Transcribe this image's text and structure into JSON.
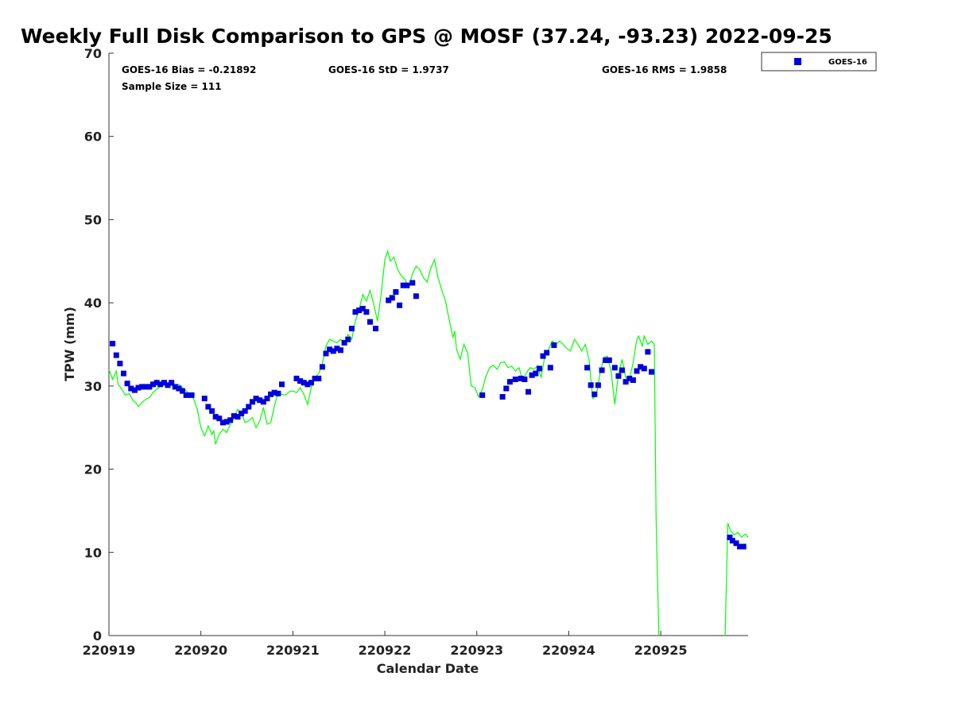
{
  "chart_data": {
    "type": "scatter",
    "title": "Weekly Full Disk Comparison to GPS @ MOSF (37.24, -93.23) 2022-09-25",
    "xlabel": "Calendar Date",
    "ylabel": "TPW (mm)",
    "xlim": [
      0,
      6.95
    ],
    "ylim": [
      0,
      70
    ],
    "x_ticks": [
      0,
      1,
      2,
      3,
      4,
      5,
      6
    ],
    "x_tick_labels": [
      "220919",
      "220920",
      "220921",
      "220922",
      "220923",
      "220924",
      "220925"
    ],
    "y_ticks": [
      0,
      10,
      20,
      30,
      40,
      50,
      60,
      70
    ],
    "y_tick_labels": [
      "0",
      "10",
      "20",
      "30",
      "40",
      "50",
      "60",
      "70"
    ],
    "stats": {
      "bias": "GOES-16 Bias = -0.21892",
      "std": "GOES-16 StD = 1.9737",
      "rms": "GOES-16 RMS = 1.9858",
      "sample": "Sample Size = 111"
    },
    "legend": {
      "label": "GOES-16",
      "color": "#0000dd",
      "placement": "outside-top-right"
    },
    "gps_color": "#00ff00",
    "series": [
      {
        "name": "GPS",
        "style": "line",
        "color": "#00ff00",
        "segments": [
          [
            [
              0.0,
              32.0
            ],
            [
              0.04,
              30.8
            ],
            [
              0.08,
              31.8
            ],
            [
              0.1,
              30.2
            ],
            [
              0.14,
              29.6
            ],
            [
              0.18,
              28.9
            ],
            [
              0.22,
              29.1
            ],
            [
              0.26,
              28.3
            ],
            [
              0.3,
              27.9
            ],
            [
              0.32,
              27.5
            ],
            [
              0.36,
              28.0
            ],
            [
              0.4,
              28.4
            ],
            [
              0.44,
              28.6
            ],
            [
              0.48,
              29.2
            ],
            [
              0.52,
              29.6
            ],
            [
              0.56,
              30.0
            ],
            [
              0.6,
              30.3
            ],
            [
              0.64,
              29.9
            ],
            [
              0.68,
              30.1
            ],
            [
              0.72,
              29.8
            ],
            [
              0.76,
              30.2
            ],
            [
              0.8,
              29.8
            ],
            [
              0.84,
              29.4
            ],
            [
              0.88,
              29.0
            ],
            [
              0.92,
              28.5
            ],
            [
              0.96,
              27.2
            ],
            [
              1.0,
              25.0
            ],
            [
              1.04,
              24.0
            ],
            [
              1.08,
              25.2
            ],
            [
              1.12,
              24.2
            ],
            [
              1.14,
              24.6
            ],
            [
              1.16,
              23.0
            ],
            [
              1.2,
              24.2
            ],
            [
              1.24,
              24.8
            ],
            [
              1.28,
              24.4
            ],
            [
              1.32,
              25.4
            ],
            [
              1.36,
              26.2
            ],
            [
              1.4,
              27.2
            ],
            [
              1.44,
              26.8
            ],
            [
              1.48,
              25.6
            ],
            [
              1.52,
              25.8
            ],
            [
              1.56,
              26.2
            ],
            [
              1.6,
              25.0
            ],
            [
              1.64,
              25.8
            ],
            [
              1.68,
              27.4
            ],
            [
              1.7,
              26.4
            ],
            [
              1.72,
              25.4
            ],
            [
              1.76,
              25.6
            ],
            [
              1.8,
              27.6
            ],
            [
              1.84,
              29.2
            ],
            [
              1.88,
              29.0
            ],
            [
              1.92,
              28.9
            ],
            [
              1.96,
              29.3
            ],
            [
              2.0,
              29.4
            ],
            [
              2.04,
              29.2
            ],
            [
              2.08,
              29.8
            ],
            [
              2.12,
              29.0
            ],
            [
              2.16,
              27.8
            ],
            [
              2.2,
              29.8
            ],
            [
              2.24,
              31.0
            ],
            [
              2.28,
              31.5
            ],
            [
              2.32,
              32.6
            ],
            [
              2.36,
              34.8
            ],
            [
              2.4,
              35.6
            ],
            [
              2.44,
              35.4
            ],
            [
              2.48,
              35.2
            ],
            [
              2.52,
              35.6
            ],
            [
              2.56,
              35.0
            ],
            [
              2.6,
              36.2
            ],
            [
              2.64,
              35.6
            ],
            [
              2.68,
              37.8
            ],
            [
              2.72,
              39.2
            ],
            [
              2.76,
              41.0
            ],
            [
              2.8,
              40.2
            ],
            [
              2.84,
              41.5
            ],
            [
              2.88,
              39.8
            ],
            [
              2.92,
              37.8
            ],
            [
              2.96,
              41.0
            ],
            [
              3.0,
              45.2
            ],
            [
              3.03,
              46.2
            ],
            [
              3.06,
              45.0
            ],
            [
              3.1,
              45.5
            ],
            [
              3.14,
              44.0
            ],
            [
              3.18,
              43.2
            ],
            [
              3.22,
              42.8
            ],
            [
              3.26,
              41.8
            ],
            [
              3.3,
              43.5
            ],
            [
              3.34,
              44.4
            ],
            [
              3.38,
              44.0
            ],
            [
              3.42,
              43.0
            ],
            [
              3.46,
              42.5
            ],
            [
              3.5,
              44.2
            ],
            [
              3.54,
              45.2
            ],
            [
              3.58,
              43.0
            ],
            [
              3.62,
              41.5
            ],
            [
              3.66,
              40.2
            ],
            [
              3.7,
              38.0
            ],
            [
              3.74,
              35.8
            ],
            [
              3.76,
              36.6
            ],
            [
              3.78,
              34.4
            ],
            [
              3.82,
              33.2
            ],
            [
              3.86,
              35.0
            ],
            [
              3.9,
              34.0
            ],
            [
              3.94,
              30.0
            ],
            [
              3.98,
              29.8
            ],
            [
              4.02,
              28.7
            ],
            [
              4.06,
              29.6
            ],
            [
              4.1,
              31.2
            ],
            [
              4.14,
              32.2
            ],
            [
              4.18,
              32.5
            ],
            [
              4.22,
              32.0
            ],
            [
              4.26,
              32.8
            ],
            [
              4.3,
              32.9
            ],
            [
              4.34,
              32.2
            ],
            [
              4.38,
              32.4
            ],
            [
              4.42,
              31.8
            ],
            [
              4.46,
              32.2
            ],
            [
              4.5,
              30.6
            ],
            [
              4.54,
              31.6
            ],
            [
              4.58,
              32.2
            ],
            [
              4.62,
              32.0
            ],
            [
              4.66,
              32.4
            ],
            [
              4.7,
              31.0
            ],
            [
              4.74,
              33.6
            ],
            [
              4.78,
              34.4
            ],
            [
              4.82,
              35.4
            ],
            [
              4.86,
              35.0
            ],
            [
              4.9,
              35.4
            ],
            [
              4.94,
              35.0
            ],
            [
              4.98,
              34.5
            ],
            [
              5.02,
              34.2
            ],
            [
              5.06,
              35.6
            ],
            [
              5.1,
              35.0
            ],
            [
              5.14,
              34.2
            ],
            [
              5.18,
              35.0
            ],
            [
              5.22,
              33.2
            ],
            [
              5.26,
              28.5
            ],
            [
              5.3,
              28.8
            ],
            [
              5.34,
              31.5
            ],
            [
              5.38,
              33.4
            ],
            [
              5.42,
              33.6
            ],
            [
              5.46,
              31.8
            ],
            [
              5.5,
              27.8
            ],
            [
              5.54,
              31.4
            ],
            [
              5.58,
              33.2
            ],
            [
              5.62,
              31.0
            ],
            [
              5.66,
              30.8
            ],
            [
              5.7,
              32.8
            ],
            [
              5.74,
              35.6
            ],
            [
              5.76,
              36.0
            ],
            [
              5.8,
              34.8
            ],
            [
              5.82,
              36.0
            ],
            [
              5.86,
              35.0
            ],
            [
              5.9,
              35.4
            ],
            [
              5.93,
              35.0
            ],
            [
              5.95,
              14.0
            ],
            [
              5.98,
              0.0
            ]
          ],
          [
            [
              6.7,
              0.0
            ],
            [
              6.73,
              13.5
            ],
            [
              6.76,
              12.6
            ],
            [
              6.8,
              12.1
            ],
            [
              6.84,
              12.4
            ],
            [
              6.88,
              11.8
            ],
            [
              6.92,
              12.2
            ],
            [
              6.95,
              11.8
            ]
          ]
        ]
      },
      {
        "name": "GOES-16",
        "style": "marker",
        "color": "#0000dd",
        "points": [
          [
            0.04,
            35.1
          ],
          [
            0.08,
            33.7
          ],
          [
            0.12,
            32.7
          ],
          [
            0.16,
            31.5
          ],
          [
            0.2,
            30.3
          ],
          [
            0.24,
            29.7
          ],
          [
            0.28,
            29.5
          ],
          [
            0.32,
            29.8
          ],
          [
            0.36,
            29.9
          ],
          [
            0.4,
            29.9
          ],
          [
            0.44,
            29.9
          ],
          [
            0.48,
            30.2
          ],
          [
            0.52,
            30.4
          ],
          [
            0.56,
            30.2
          ],
          [
            0.6,
            30.4
          ],
          [
            0.64,
            30.1
          ],
          [
            0.68,
            30.4
          ],
          [
            0.72,
            29.9
          ],
          [
            0.76,
            29.7
          ],
          [
            0.8,
            29.4
          ],
          [
            0.84,
            28.9
          ],
          [
            0.9,
            28.9
          ],
          [
            1.04,
            28.5
          ],
          [
            1.08,
            27.5
          ],
          [
            1.12,
            27.0
          ],
          [
            1.16,
            26.3
          ],
          [
            1.2,
            26.1
          ],
          [
            1.24,
            25.6
          ],
          [
            1.28,
            25.7
          ],
          [
            1.32,
            25.9
          ],
          [
            1.36,
            26.4
          ],
          [
            1.4,
            26.3
          ],
          [
            1.44,
            26.7
          ],
          [
            1.48,
            27.0
          ],
          [
            1.52,
            27.5
          ],
          [
            1.56,
            28.1
          ],
          [
            1.6,
            28.5
          ],
          [
            1.64,
            28.3
          ],
          [
            1.68,
            28.1
          ],
          [
            1.72,
            28.5
          ],
          [
            1.76,
            29.0
          ],
          [
            1.8,
            29.2
          ],
          [
            1.84,
            29.1
          ],
          [
            1.88,
            30.2
          ],
          [
            2.04,
            30.9
          ],
          [
            2.08,
            30.6
          ],
          [
            2.12,
            30.4
          ],
          [
            2.16,
            30.2
          ],
          [
            2.2,
            30.4
          ],
          [
            2.24,
            30.9
          ],
          [
            2.28,
            30.9
          ],
          [
            2.32,
            32.3
          ],
          [
            2.36,
            33.9
          ],
          [
            2.4,
            34.4
          ],
          [
            2.44,
            34.2
          ],
          [
            2.48,
            34.5
          ],
          [
            2.52,
            34.3
          ],
          [
            2.56,
            35.2
          ],
          [
            2.6,
            35.6
          ],
          [
            2.64,
            36.9
          ],
          [
            2.68,
            38.9
          ],
          [
            2.72,
            39.1
          ],
          [
            2.76,
            39.3
          ],
          [
            2.8,
            38.9
          ],
          [
            2.84,
            37.7
          ],
          [
            2.9,
            36.9
          ],
          [
            3.04,
            40.3
          ],
          [
            3.08,
            40.6
          ],
          [
            3.12,
            41.3
          ],
          [
            3.16,
            39.7
          ],
          [
            3.2,
            42.1
          ],
          [
            3.24,
            42.1
          ],
          [
            3.3,
            42.4
          ],
          [
            3.34,
            40.8
          ],
          [
            4.06,
            28.9
          ],
          [
            4.28,
            28.7
          ],
          [
            4.32,
            29.7
          ],
          [
            4.36,
            30.5
          ],
          [
            4.42,
            30.8
          ],
          [
            4.48,
            30.9
          ],
          [
            4.52,
            30.8
          ],
          [
            4.56,
            29.3
          ],
          [
            4.6,
            31.3
          ],
          [
            4.64,
            31.5
          ],
          [
            4.68,
            32.1
          ],
          [
            4.72,
            33.6
          ],
          [
            4.76,
            34.0
          ],
          [
            4.8,
            32.2
          ],
          [
            4.84,
            34.9
          ],
          [
            5.2,
            32.2
          ],
          [
            5.24,
            30.1
          ],
          [
            5.28,
            29.0
          ],
          [
            5.32,
            30.1
          ],
          [
            5.36,
            31.9
          ],
          [
            5.4,
            33.1
          ],
          [
            5.44,
            33.1
          ],
          [
            5.5,
            32.2
          ],
          [
            5.54,
            31.2
          ],
          [
            5.58,
            31.9
          ],
          [
            5.62,
            30.5
          ],
          [
            5.66,
            30.9
          ],
          [
            5.7,
            30.7
          ],
          [
            5.74,
            31.8
          ],
          [
            5.78,
            32.3
          ],
          [
            5.82,
            32.1
          ],
          [
            5.86,
            34.1
          ],
          [
            5.9,
            31.7
          ],
          [
            6.75,
            11.8
          ],
          [
            6.78,
            11.4
          ],
          [
            6.82,
            11.1
          ],
          [
            6.86,
            10.7
          ],
          [
            6.9,
            10.7
          ]
        ]
      }
    ]
  }
}
